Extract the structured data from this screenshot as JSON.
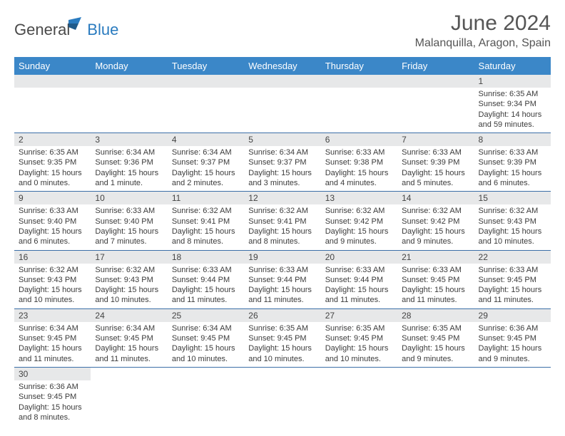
{
  "logo": {
    "dark": "General",
    "blue": "Blue"
  },
  "title": "June 2024",
  "location": "Malanquilla, Aragon, Spain",
  "colors": {
    "header_bg": "#3b87c8",
    "header_text": "#ffffff",
    "daynum_bg": "#e7e8e9",
    "row_border": "#3b6fa8",
    "title_color": "#555555",
    "text_color": "#3b3b3b",
    "logo_dark": "#4a4a4a",
    "logo_blue": "#2a7bbf"
  },
  "weekdays": [
    "Sunday",
    "Monday",
    "Tuesday",
    "Wednesday",
    "Thursday",
    "Friday",
    "Saturday"
  ],
  "weeks": [
    [
      null,
      null,
      null,
      null,
      null,
      null,
      {
        "d": "1",
        "sr": "6:35 AM",
        "ss": "9:34 PM",
        "dl": "14 hours and 59 minutes."
      }
    ],
    [
      {
        "d": "2",
        "sr": "6:35 AM",
        "ss": "9:35 PM",
        "dl": "15 hours and 0 minutes."
      },
      {
        "d": "3",
        "sr": "6:34 AM",
        "ss": "9:36 PM",
        "dl": "15 hours and 1 minute."
      },
      {
        "d": "4",
        "sr": "6:34 AM",
        "ss": "9:37 PM",
        "dl": "15 hours and 2 minutes."
      },
      {
        "d": "5",
        "sr": "6:34 AM",
        "ss": "9:37 PM",
        "dl": "15 hours and 3 minutes."
      },
      {
        "d": "6",
        "sr": "6:33 AM",
        "ss": "9:38 PM",
        "dl": "15 hours and 4 minutes."
      },
      {
        "d": "7",
        "sr": "6:33 AM",
        "ss": "9:39 PM",
        "dl": "15 hours and 5 minutes."
      },
      {
        "d": "8",
        "sr": "6:33 AM",
        "ss": "9:39 PM",
        "dl": "15 hours and 6 minutes."
      }
    ],
    [
      {
        "d": "9",
        "sr": "6:33 AM",
        "ss": "9:40 PM",
        "dl": "15 hours and 6 minutes."
      },
      {
        "d": "10",
        "sr": "6:33 AM",
        "ss": "9:40 PM",
        "dl": "15 hours and 7 minutes."
      },
      {
        "d": "11",
        "sr": "6:32 AM",
        "ss": "9:41 PM",
        "dl": "15 hours and 8 minutes."
      },
      {
        "d": "12",
        "sr": "6:32 AM",
        "ss": "9:41 PM",
        "dl": "15 hours and 8 minutes."
      },
      {
        "d": "13",
        "sr": "6:32 AM",
        "ss": "9:42 PM",
        "dl": "15 hours and 9 minutes."
      },
      {
        "d": "14",
        "sr": "6:32 AM",
        "ss": "9:42 PM",
        "dl": "15 hours and 9 minutes."
      },
      {
        "d": "15",
        "sr": "6:32 AM",
        "ss": "9:43 PM",
        "dl": "15 hours and 10 minutes."
      }
    ],
    [
      {
        "d": "16",
        "sr": "6:32 AM",
        "ss": "9:43 PM",
        "dl": "15 hours and 10 minutes."
      },
      {
        "d": "17",
        "sr": "6:32 AM",
        "ss": "9:43 PM",
        "dl": "15 hours and 10 minutes."
      },
      {
        "d": "18",
        "sr": "6:33 AM",
        "ss": "9:44 PM",
        "dl": "15 hours and 11 minutes."
      },
      {
        "d": "19",
        "sr": "6:33 AM",
        "ss": "9:44 PM",
        "dl": "15 hours and 11 minutes."
      },
      {
        "d": "20",
        "sr": "6:33 AM",
        "ss": "9:44 PM",
        "dl": "15 hours and 11 minutes."
      },
      {
        "d": "21",
        "sr": "6:33 AM",
        "ss": "9:45 PM",
        "dl": "15 hours and 11 minutes."
      },
      {
        "d": "22",
        "sr": "6:33 AM",
        "ss": "9:45 PM",
        "dl": "15 hours and 11 minutes."
      }
    ],
    [
      {
        "d": "23",
        "sr": "6:34 AM",
        "ss": "9:45 PM",
        "dl": "15 hours and 11 minutes."
      },
      {
        "d": "24",
        "sr": "6:34 AM",
        "ss": "9:45 PM",
        "dl": "15 hours and 11 minutes."
      },
      {
        "d": "25",
        "sr": "6:34 AM",
        "ss": "9:45 PM",
        "dl": "15 hours and 10 minutes."
      },
      {
        "d": "26",
        "sr": "6:35 AM",
        "ss": "9:45 PM",
        "dl": "15 hours and 10 minutes."
      },
      {
        "d": "27",
        "sr": "6:35 AM",
        "ss": "9:45 PM",
        "dl": "15 hours and 10 minutes."
      },
      {
        "d": "28",
        "sr": "6:35 AM",
        "ss": "9:45 PM",
        "dl": "15 hours and 9 minutes."
      },
      {
        "d": "29",
        "sr": "6:36 AM",
        "ss": "9:45 PM",
        "dl": "15 hours and 9 minutes."
      }
    ],
    [
      {
        "d": "30",
        "sr": "6:36 AM",
        "ss": "9:45 PM",
        "dl": "15 hours and 8 minutes."
      },
      null,
      null,
      null,
      null,
      null,
      null
    ]
  ],
  "labels": {
    "sunrise": "Sunrise:",
    "sunset": "Sunset:",
    "daylight": "Daylight:"
  }
}
